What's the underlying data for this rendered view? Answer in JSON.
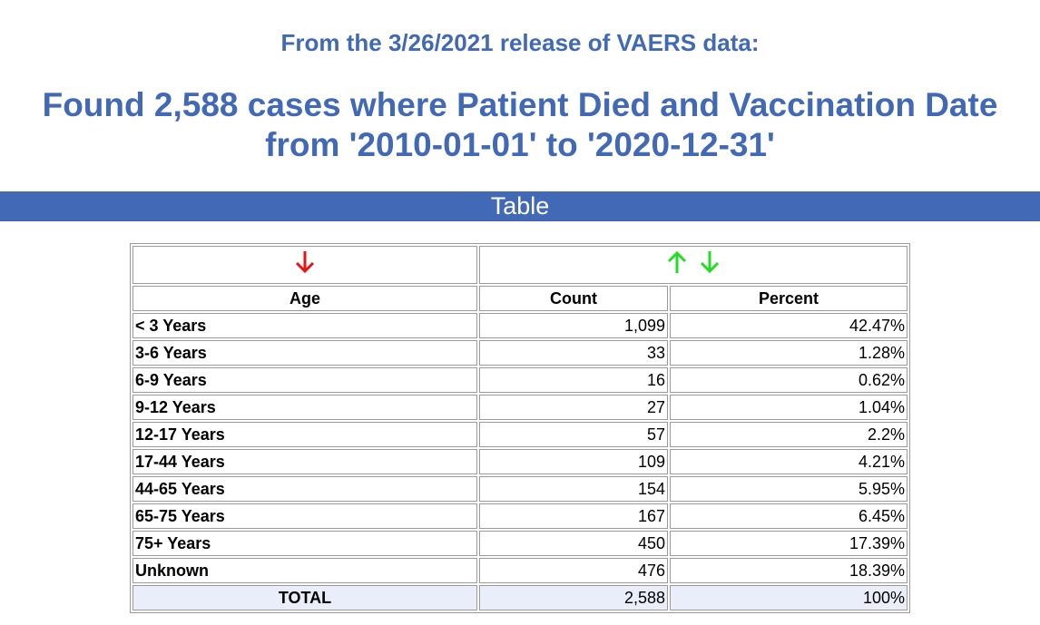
{
  "header": {
    "release_line": "From the 3/26/2021 release of VAERS data:",
    "headline_line1": "Found 2,588 cases where Patient Died and Vaccination Date",
    "headline_line2": "from '2010-01-01' to '2020-12-31'"
  },
  "band": {
    "label": "Table"
  },
  "colors": {
    "accent": "#4169b6",
    "sort_active": "#ee1111",
    "sort_inactive": "#22dd22",
    "total_row_bg": "#e9eefa"
  },
  "icons": {
    "age_sort": "arrow-down-icon",
    "count_sort_up": "arrow-up-icon",
    "count_sort_down": "arrow-down-icon"
  },
  "table": {
    "columns": [
      "Age",
      "Count",
      "Percent"
    ],
    "rows": [
      {
        "age": "< 3 Years",
        "count": "1,099",
        "percent": "42.47%"
      },
      {
        "age": "3-6 Years",
        "count": "33",
        "percent": "1.28%"
      },
      {
        "age": "6-9 Years",
        "count": "16",
        "percent": "0.62%"
      },
      {
        "age": "9-12 Years",
        "count": "27",
        "percent": "1.04%"
      },
      {
        "age": "12-17 Years",
        "count": "57",
        "percent": "2.2%"
      },
      {
        "age": "17-44 Years",
        "count": "109",
        "percent": "4.21%"
      },
      {
        "age": "44-65 Years",
        "count": "154",
        "percent": "5.95%"
      },
      {
        "age": "65-75 Years",
        "count": "167",
        "percent": "6.45%"
      },
      {
        "age": "75+ Years",
        "count": "450",
        "percent": "17.39%"
      },
      {
        "age": "Unknown",
        "count": "476",
        "percent": "18.39%"
      }
    ],
    "total": {
      "label": "TOTAL",
      "count": "2,588",
      "percent": "100%"
    }
  }
}
